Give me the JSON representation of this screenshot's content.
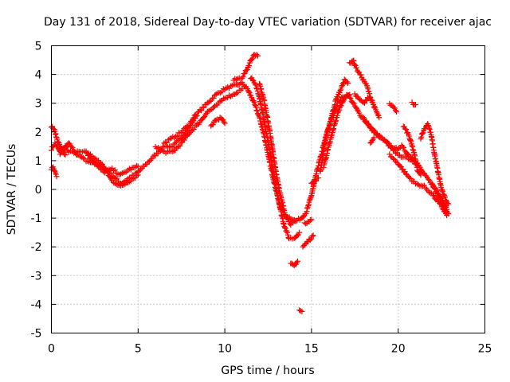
{
  "chart_data": {
    "type": "scatter",
    "title": "Day 131 of 2018, Sidereal Day-to-day VTEC variation (SDTVAR) for receiver ajac",
    "xlabel": "GPS time / hours",
    "ylabel": "SDTVAR / TECUs",
    "xlim": [
      0,
      25
    ],
    "ylim": [
      -5,
      5
    ],
    "xticks": [
      0,
      5,
      10,
      15,
      20,
      25
    ],
    "xtick_labels": [
      "0",
      "5",
      "10",
      "15",
      "20",
      "25"
    ],
    "yticks": [
      -5,
      -4,
      -3,
      -2,
      -1,
      0,
      1,
      2,
      3,
      4,
      5
    ],
    "ytick_labels": [
      "-5",
      "-4",
      "-3",
      "-2",
      "-1",
      "0",
      "1",
      "2",
      "3",
      "4",
      "5"
    ],
    "grid": true,
    "marker": "+",
    "color": "#ff0000",
    "series": [
      {
        "name": "SDTVAR",
        "tracks": [
          [
            [
              0.0,
              1.4
            ],
            [
              0.2,
              1.6
            ],
            [
              0.5,
              1.3
            ],
            [
              0.8,
              1.5
            ],
            [
              1.0,
              1.3
            ],
            [
              1.5,
              1.3
            ],
            [
              2.0,
              1.3
            ],
            [
              2.5,
              1.1
            ],
            [
              3.0,
              0.8
            ],
            [
              3.5,
              0.5
            ],
            [
              4.0,
              0.2
            ],
            [
              4.5,
              0.4
            ],
            [
              5.0,
              0.6
            ],
            [
              5.5,
              0.9
            ],
            [
              6.0,
              1.2
            ],
            [
              6.5,
              1.5
            ],
            [
              7.0,
              1.5
            ],
            [
              7.5,
              1.8
            ],
            [
              8.0,
              2.2
            ],
            [
              8.5,
              2.7
            ],
            [
              9.0,
              3.0
            ],
            [
              9.5,
              3.3
            ],
            [
              10.0,
              3.5
            ],
            [
              10.5,
              3.6
            ],
            [
              11.0,
              3.7
            ],
            [
              11.3,
              3.5
            ],
            [
              11.7,
              3.0
            ],
            [
              12.0,
              2.5
            ],
            [
              12.3,
              1.8
            ],
            [
              12.6,
              0.9
            ],
            [
              12.9,
              0.1
            ],
            [
              13.2,
              -0.6
            ],
            [
              13.5,
              -0.9
            ],
            [
              13.8,
              -1.0
            ],
            [
              14.1,
              -1.1
            ],
            [
              14.4,
              -1.0
            ],
            [
              14.7,
              -0.8
            ],
            [
              15.0,
              -0.2
            ],
            [
              15.3,
              0.6
            ],
            [
              15.6,
              1.3
            ],
            [
              15.9,
              2.0
            ],
            [
              16.2,
              2.5
            ],
            [
              16.5,
              3.0
            ],
            [
              16.8,
              3.2
            ],
            [
              17.1,
              3.3
            ],
            [
              17.4,
              3.0
            ],
            [
              17.8,
              2.6
            ],
            [
              18.2,
              2.3
            ],
            [
              18.6,
              2.0
            ],
            [
              19.0,
              1.8
            ],
            [
              19.4,
              1.6
            ],
            [
              19.8,
              1.4
            ],
            [
              20.2,
              1.5
            ],
            [
              20.6,
              1.2
            ],
            [
              21.0,
              1.0
            ],
            [
              21.4,
              0.6
            ],
            [
              21.8,
              0.3
            ],
            [
              22.2,
              0.0
            ],
            [
              22.5,
              -0.3
            ],
            [
              22.8,
              -0.7
            ]
          ],
          [
            [
              0.0,
              2.2
            ],
            [
              0.15,
              2.1
            ],
            [
              0.3,
              1.8
            ],
            [
              0.5,
              1.5
            ],
            [
              0.8,
              1.2
            ]
          ],
          [
            [
              0.0,
              0.7
            ],
            [
              0.1,
              0.75
            ],
            [
              0.2,
              0.6
            ],
            [
              0.3,
              0.45
            ]
          ],
          [
            [
              0.5,
              1.2
            ],
            [
              1.0,
              1.6
            ],
            [
              1.5,
              1.2
            ],
            [
              2.0,
              1.0
            ],
            [
              2.5,
              0.9
            ],
            [
              3.0,
              0.8
            ],
            [
              3.5,
              0.3
            ],
            [
              4.0,
              0.1
            ],
            [
              4.5,
              0.3
            ],
            [
              5.0,
              0.5
            ]
          ],
          [
            [
              2.0,
              1.3
            ],
            [
              2.5,
              0.9
            ],
            [
              3.0,
              0.6
            ],
            [
              3.5,
              0.7
            ],
            [
              4.0,
              0.5
            ],
            [
              4.5,
              0.7
            ],
            [
              5.0,
              0.8
            ]
          ],
          [
            [
              6.0,
              1.5
            ],
            [
              6.5,
              1.3
            ],
            [
              7.0,
              1.3
            ],
            [
              7.5,
              1.6
            ],
            [
              8.0,
              2.0
            ],
            [
              8.5,
              2.3
            ],
            [
              9.0,
              2.7
            ],
            [
              9.5,
              2.9
            ],
            [
              10.0,
              3.2
            ],
            [
              10.5,
              3.3
            ],
            [
              11.0,
              3.5
            ]
          ],
          [
            [
              6.5,
              1.6
            ],
            [
              7.0,
              1.8
            ],
            [
              7.5,
              2.0
            ],
            [
              8.0,
              2.3
            ],
            [
              8.3,
              2.6
            ]
          ],
          [
            [
              9.2,
              2.2
            ],
            [
              9.5,
              2.4
            ],
            [
              9.8,
              2.5
            ],
            [
              10.0,
              2.3
            ]
          ],
          [
            [
              10.5,
              3.8
            ],
            [
              11.0,
              3.9
            ],
            [
              11.3,
              4.2
            ],
            [
              11.5,
              4.5
            ],
            [
              11.7,
              4.7
            ],
            [
              11.9,
              4.65
            ]
          ],
          [
            [
              11.5,
              3.9
            ],
            [
              11.8,
              3.6
            ],
            [
              12.0,
              3.2
            ],
            [
              12.2,
              2.6
            ],
            [
              12.5,
              1.6
            ],
            [
              12.8,
              0.6
            ],
            [
              13.1,
              -0.4
            ],
            [
              13.4,
              -1.2
            ],
            [
              13.7,
              -1.7
            ],
            [
              14.0,
              -1.7
            ],
            [
              14.3,
              -1.5
            ]
          ],
          [
            [
              12.0,
              3.7
            ],
            [
              12.3,
              3.0
            ],
            [
              12.6,
              2.0
            ],
            [
              12.9,
              0.8
            ],
            [
              13.2,
              -0.2
            ],
            [
              13.5,
              -0.9
            ],
            [
              13.8,
              -1.2
            ],
            [
              14.1,
              -1.1
            ]
          ],
          [
            [
              13.8,
              -2.6
            ],
            [
              14.0,
              -2.65
            ],
            [
              14.2,
              -2.5
            ]
          ],
          [
            [
              14.3,
              -4.2
            ],
            [
              14.45,
              -4.25
            ]
          ],
          [
            [
              14.5,
              -2.0
            ],
            [
              14.8,
              -1.8
            ],
            [
              15.1,
              -1.6
            ]
          ],
          [
            [
              14.6,
              -1.2
            ],
            [
              14.8,
              -1.1
            ],
            [
              15.0,
              -1.05
            ]
          ],
          [
            [
              15.0,
              0.2
            ],
            [
              15.2,
              0.3
            ],
            [
              15.4,
              0.4
            ]
          ],
          [
            [
              15.5,
              0.6
            ],
            [
              15.8,
              1.7
            ],
            [
              16.1,
              2.4
            ],
            [
              16.4,
              3.1
            ],
            [
              16.7,
              3.5
            ],
            [
              16.9,
              3.8
            ],
            [
              17.1,
              3.7
            ]
          ],
          [
            [
              15.7,
              0.8
            ],
            [
              16.0,
              1.5
            ],
            [
              16.3,
              2.2
            ],
            [
              16.6,
              2.8
            ],
            [
              16.9,
              3.2
            ],
            [
              17.2,
              3.3
            ]
          ],
          [
            [
              17.2,
              4.4
            ],
            [
              17.4,
              4.5
            ],
            [
              17.6,
              4.2
            ],
            [
              17.9,
              3.9
            ],
            [
              18.2,
              3.6
            ],
            [
              18.4,
              3.2
            ],
            [
              18.6,
              2.9
            ],
            [
              18.9,
              2.5
            ]
          ],
          [
            [
              17.5,
              3.3
            ],
            [
              17.8,
              3.1
            ],
            [
              18.0,
              3.0
            ],
            [
              18.3,
              3.2
            ],
            [
              18.5,
              3.1
            ]
          ],
          [
            [
              18.0,
              2.5
            ],
            [
              18.5,
              2.1
            ],
            [
              19.0,
              1.8
            ],
            [
              19.5,
              1.5
            ],
            [
              20.0,
              1.2
            ],
            [
              20.5,
              1.1
            ],
            [
              21.0,
              0.9
            ]
          ],
          [
            [
              18.4,
              1.6
            ],
            [
              18.6,
              1.8
            ]
          ],
          [
            [
              19.5,
              3.0
            ],
            [
              19.7,
              2.9
            ],
            [
              19.9,
              2.7
            ]
          ],
          [
            [
              20.8,
              3.0
            ],
            [
              21.0,
              2.95
            ]
          ],
          [
            [
              19.5,
              1.2
            ],
            [
              20.0,
              0.9
            ],
            [
              20.5,
              0.5
            ],
            [
              21.0,
              0.2
            ],
            [
              21.5,
              0.1
            ],
            [
              22.0,
              -0.2
            ],
            [
              22.5,
              -0.6
            ],
            [
              22.8,
              -0.9
            ]
          ],
          [
            [
              20.3,
              2.2
            ],
            [
              20.6,
              1.9
            ],
            [
              20.9,
              1.3
            ],
            [
              21.1,
              0.7
            ],
            [
              21.3,
              0.5
            ]
          ],
          [
            [
              21.3,
              1.8
            ],
            [
              21.5,
              2.1
            ],
            [
              21.7,
              2.3
            ],
            [
              21.9,
              1.9
            ],
            [
              22.1,
              1.2
            ],
            [
              22.3,
              0.6
            ],
            [
              22.5,
              0.0
            ],
            [
              22.7,
              -0.3
            ],
            [
              22.9,
              -0.5
            ]
          ],
          [
            [
              22.0,
              0.1
            ],
            [
              22.3,
              -0.2
            ],
            [
              22.6,
              -0.5
            ],
            [
              22.8,
              -0.8
            ],
            [
              22.9,
              -0.85
            ]
          ]
        ]
      }
    ]
  }
}
